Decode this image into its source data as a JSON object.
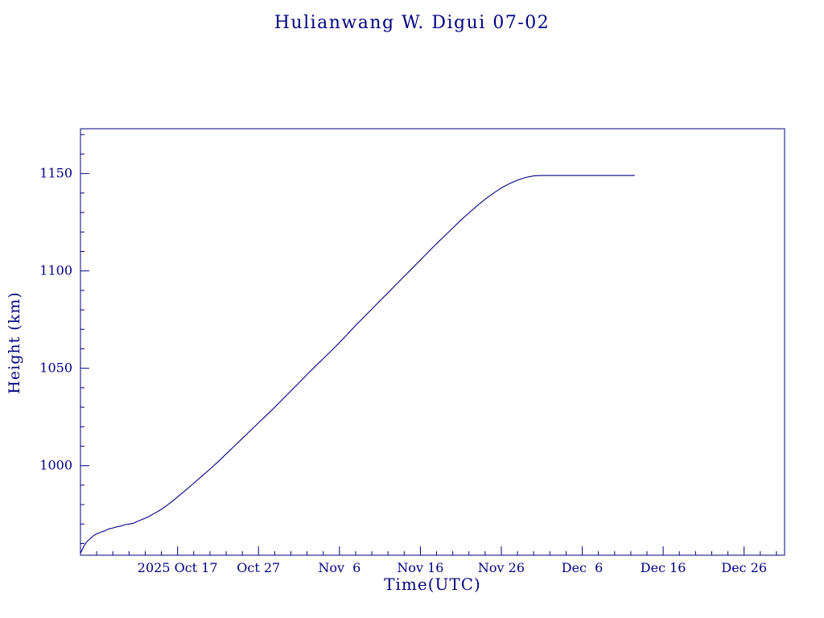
{
  "page": {
    "background": "#ffffff",
    "accent_color": "#000080"
  },
  "chart_data": {
    "type": "line",
    "title": "Hulianwang W. Digui 07-02",
    "xlabel": "Time(UTC)",
    "ylabel": "Height (km)",
    "line_color": "#000080",
    "axis_color": "#000080",
    "grid": false,
    "legend": false,
    "x_axis_note": "x values are days since 2025 Oct 5 (UTC)",
    "xlim": [
      0,
      87
    ],
    "ylim": [
      954,
      1173
    ],
    "x_major_ticks": [
      {
        "x": 12,
        "label": "2025 Oct 17"
      },
      {
        "x": 22,
        "label": "Oct 27"
      },
      {
        "x": 32,
        "label": "Nov  6"
      },
      {
        "x": 42,
        "label": "Nov 16"
      },
      {
        "x": 52,
        "label": "Nov 26"
      },
      {
        "x": 62,
        "label": "Dec  6"
      },
      {
        "x": 72,
        "label": "Dec 16"
      },
      {
        "x": 82,
        "label": "Dec 26"
      }
    ],
    "x_minor_step": 2,
    "y_major_ticks": [
      {
        "y": 1000,
        "label": "1000"
      },
      {
        "y": 1050,
        "label": "1050"
      },
      {
        "y": 1100,
        "label": "1100"
      },
      {
        "y": 1150,
        "label": "1150"
      }
    ],
    "y_minor_step": 10,
    "series": [
      {
        "name": "height",
        "points": [
          [
            0,
            955
          ],
          [
            0.4,
            958.5
          ],
          [
            0.8,
            961
          ],
          [
            1.2,
            962.5
          ],
          [
            1.6,
            964
          ],
          [
            2,
            965
          ],
          [
            2.5,
            965.8
          ],
          [
            3,
            966.5
          ],
          [
            3.5,
            967.5
          ],
          [
            4,
            968
          ],
          [
            4.5,
            968.6
          ],
          [
            5,
            969
          ],
          [
            5.5,
            969.7
          ],
          [
            6,
            970
          ],
          [
            6.5,
            970.4
          ],
          [
            7,
            971.3
          ],
          [
            7.5,
            972.2
          ],
          [
            8,
            973
          ],
          [
            8.5,
            974
          ],
          [
            9,
            975.2
          ],
          [
            9.5,
            976.3
          ],
          [
            10,
            977.6
          ],
          [
            10.5,
            979
          ],
          [
            11,
            980.6
          ],
          [
            11.5,
            982.2
          ],
          [
            12,
            984
          ],
          [
            13,
            987.4
          ],
          [
            14,
            991
          ],
          [
            15,
            994.6
          ],
          [
            16,
            998.2
          ],
          [
            17,
            1002
          ],
          [
            18,
            1006
          ],
          [
            19,
            1010
          ],
          [
            20,
            1014
          ],
          [
            21,
            1018
          ],
          [
            22,
            1022
          ],
          [
            23,
            1026
          ],
          [
            24,
            1030
          ],
          [
            25,
            1034.2
          ],
          [
            26,
            1038.4
          ],
          [
            27,
            1042.6
          ],
          [
            28,
            1046.8
          ],
          [
            29,
            1051
          ],
          [
            30,
            1055
          ],
          [
            31,
            1059
          ],
          [
            32,
            1063.2
          ],
          [
            33,
            1067.6
          ],
          [
            34,
            1072
          ],
          [
            35,
            1076.2
          ],
          [
            36,
            1080.4
          ],
          [
            37,
            1084.6
          ],
          [
            38,
            1088.8
          ],
          [
            39,
            1093
          ],
          [
            40,
            1097.2
          ],
          [
            41,
            1101.4
          ],
          [
            42,
            1105.6
          ],
          [
            43,
            1109.8
          ],
          [
            44,
            1114
          ],
          [
            45,
            1118
          ],
          [
            46,
            1122
          ],
          [
            47,
            1126
          ],
          [
            48,
            1129.8
          ],
          [
            49,
            1133.4
          ],
          [
            50,
            1136.8
          ],
          [
            51,
            1139.8
          ],
          [
            52,
            1142.6
          ],
          [
            53,
            1144.8
          ],
          [
            54,
            1146.6
          ],
          [
            55,
            1148
          ],
          [
            56,
            1148.8
          ],
          [
            57,
            1149
          ],
          [
            58,
            1149
          ],
          [
            60,
            1149
          ],
          [
            62,
            1149
          ],
          [
            64,
            1149
          ],
          [
            66,
            1149
          ],
          [
            68.5,
            1149
          ]
        ]
      }
    ]
  }
}
